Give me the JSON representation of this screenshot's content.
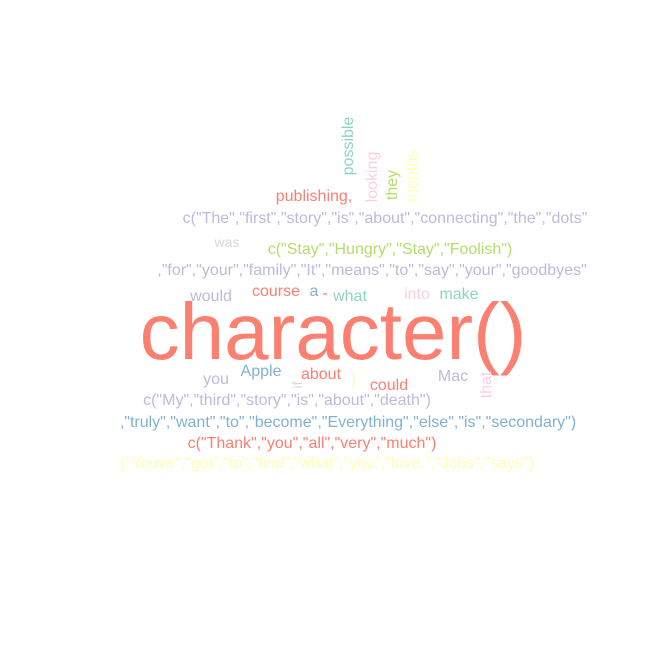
{
  "colors": {
    "salmon": "#fb8072",
    "lavender": "#bebada",
    "pale_yellow": "#ffffb3",
    "lime": "#b3de69",
    "teal": "#8dd3c7",
    "pink": "#fccde5",
    "light_gray": "#d9d9d9",
    "blue": "#80b1d3",
    "orange": "#fdb462"
  },
  "words": [
    "possible",
    "looking",
    "they",
    "months",
    "publishing,",
    "c(\"The\",\"first\",\"story\",\"is\",\"about\",\"connecting\",\"the\",\"dots\"",
    "was",
    "c(\"Stay\",\"Hungry\",\"Stay\",\"Foolish\")",
    ",\"for\",\"your\",\"family\",\"It\",\"means\",\"to\",\"say\",\"your\",\"goodbyes\"",
    "course",
    "a",
    "-",
    "what",
    "into",
    "make",
    "would",
    "character()",
    "you",
    "Apple",
    "if",
    "about",
    ")",
    "could",
    "Mac",
    "that",
    "c(\"My\",\"third\",\"story\",\"is\",\"about\",\"death\")",
    ",\"truly\",\"want\",\"to\",\"become\",\"Everything\",\"else\",\"is\",\"secondary\")",
    "c(\"Thank\",\"you\",\"all\",\"very\",\"much\")",
    "(\"Youve\",\"got\",\"to\",\"find\",\"what\",\"you\",\"love,\",\"Jobs\",\"says\")"
  ]
}
